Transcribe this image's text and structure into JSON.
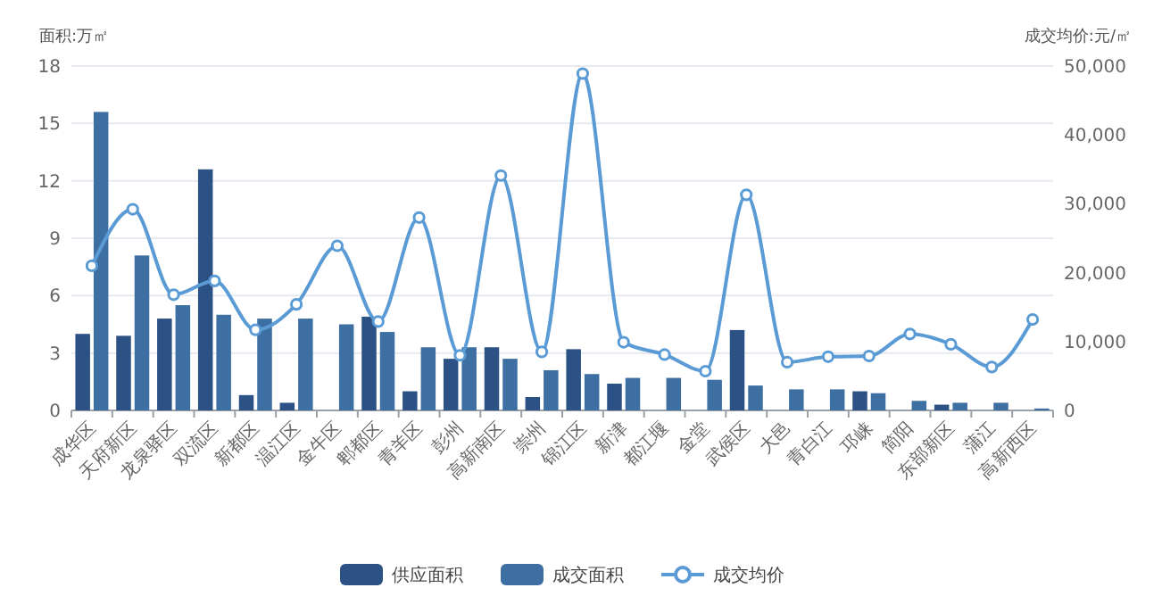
{
  "chart_data": {
    "type": "bar",
    "categories": [
      "成华区",
      "天府新区",
      "龙泉驿区",
      "双流区",
      "新都区",
      "温江区",
      "金牛区",
      "郫都区",
      "青羊区",
      "彭州",
      "高新南区",
      "崇州",
      "锦江区",
      "新津",
      "都江堰",
      "金堂",
      "武侯区",
      "大邑",
      "青白江",
      "邛崃",
      "简阳",
      "东部新区",
      "蒲江",
      "高新西区"
    ],
    "ylabel": "面积:万㎡",
    "y2label": "成交均价:元/㎡",
    "ylim": [
      0,
      18
    ],
    "yticks": [
      0,
      3,
      6,
      9,
      12,
      15,
      18
    ],
    "y2lim": [
      0,
      50000
    ],
    "y2ticks": [
      {
        "value": 0,
        "label": "0"
      },
      {
        "value": 10000,
        "label": "10,000"
      },
      {
        "value": 20000,
        "label": "20,000"
      },
      {
        "value": 30000,
        "label": "30,000"
      },
      {
        "value": 40000,
        "label": "40,000"
      },
      {
        "value": 50000,
        "label": "50,000"
      }
    ],
    "grid": "y",
    "legend": "bottom",
    "series": [
      {
        "name": "供应面积",
        "color": "#2c5184",
        "values": [
          4.0,
          3.9,
          4.8,
          12.6,
          0.8,
          0.4,
          0,
          4.9,
          1.0,
          2.7,
          3.3,
          0.7,
          3.2,
          1.4,
          0,
          0,
          4.2,
          0,
          0,
          1.0,
          0,
          0.3,
          0,
          0
        ]
      },
      {
        "name": "成交面积",
        "color": "#3e6fa2",
        "values": [
          15.6,
          8.1,
          5.5,
          5.0,
          4.8,
          4.8,
          4.5,
          4.1,
          3.3,
          3.3,
          2.7,
          2.1,
          1.9,
          1.7,
          1.7,
          1.6,
          1.3,
          1.1,
          1.1,
          0.9,
          0.5,
          0.4,
          0.4,
          0.1
        ]
      },
      {
        "name": "成交均价",
        "type": "line",
        "axis": "y2",
        "color": "#5b9bd5",
        "marker": "circle",
        "values": [
          21000,
          29200,
          16800,
          18800,
          11700,
          15400,
          23900,
          12900,
          28000,
          8000,
          34100,
          8500,
          48900,
          9900,
          8100,
          5700,
          31300,
          7000,
          7800,
          7900,
          11100,
          9600,
          6300,
          13200
        ]
      }
    ]
  }
}
